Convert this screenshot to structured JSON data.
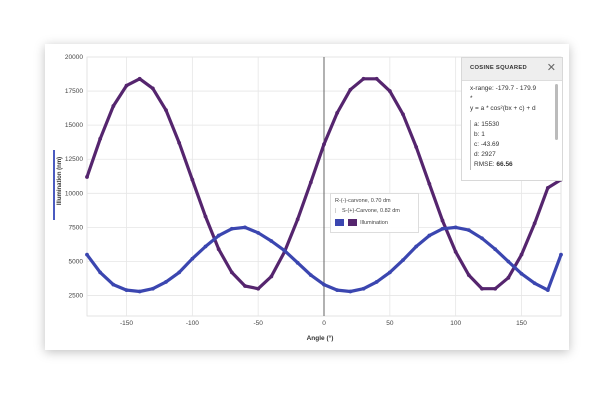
{
  "chart_data": {
    "type": "scatter",
    "xlabel": "Angle (°)",
    "ylabel": "Illumination (nm)",
    "xlim": [
      -180,
      180
    ],
    "ylim": [
      1000,
      20000
    ],
    "xticks": [
      -150,
      -100,
      -50,
      0,
      50,
      100,
      150
    ],
    "yticks": [
      2500,
      5000,
      7500,
      10000,
      12500,
      15000,
      17500,
      20000
    ],
    "grid": true,
    "legend_position": "center",
    "series": [
      {
        "name": "R-(-)-carvone, 0.70 dm",
        "color": "#55256e",
        "x": [
          -180,
          -170,
          -160,
          -150,
          -140,
          -130,
          -120,
          -110,
          -100,
          -90,
          -80,
          -70,
          -60,
          -50,
          -40,
          -30,
          -20,
          -10,
          0,
          10,
          20,
          30,
          40,
          50,
          60,
          70,
          80,
          90,
          100,
          110,
          120,
          130,
          140,
          150,
          160,
          170,
          180
        ],
        "y": [
          11200,
          14000,
          16400,
          17900,
          18400,
          17700,
          16100,
          13700,
          11000,
          8300,
          5900,
          4200,
          3200,
          3000,
          3900,
          5700,
          8100,
          10800,
          13600,
          15900,
          17600,
          18400,
          18400,
          17500,
          15800,
          13400,
          10700,
          8000,
          5700,
          4000,
          3000,
          3000,
          3800,
          5500,
          7800,
          10400,
          11000
        ]
      },
      {
        "name": "S-(+)-Carvone, 0.82 dm",
        "color": "#3b46b0",
        "x": [
          -180,
          -170,
          -160,
          -150,
          -140,
          -130,
          -120,
          -110,
          -100,
          -90,
          -80,
          -70,
          -60,
          -50,
          -40,
          -30,
          -20,
          -10,
          0,
          10,
          20,
          30,
          40,
          50,
          60,
          70,
          80,
          90,
          100,
          110,
          120,
          130,
          140,
          150,
          160,
          170,
          180
        ],
        "y": [
          5500,
          4200,
          3300,
          2900,
          2800,
          3000,
          3500,
          4200,
          5200,
          6100,
          6900,
          7400,
          7500,
          7100,
          6500,
          5800,
          4900,
          4000,
          3300,
          2900,
          2800,
          3000,
          3500,
          4200,
          5100,
          6100,
          6900,
          7400,
          7500,
          7300,
          6700,
          5900,
          5000,
          4100,
          3400,
          2900,
          5500
        ]
      }
    ],
    "legend": {
      "series_1": "R-(-)-carvone, 0.70 dm",
      "series_2": "S-(+)-Carvone, 0.82 dm",
      "illumination": "Illumination"
    }
  },
  "panel": {
    "title": "COSINE SQUARED",
    "close_glyph": "✕",
    "x_range": "x-range: -179.7 - 179.9",
    "asterisk": "*",
    "equation": "y = a * cos²(bx + c) + d",
    "a": "a: 15530",
    "b": "b: 1",
    "c": "c: -43.69",
    "d": "d: 2927",
    "rmse_label": "RMSE:",
    "rmse_value": "66.56"
  },
  "icons": {
    "close": "close-icon"
  }
}
